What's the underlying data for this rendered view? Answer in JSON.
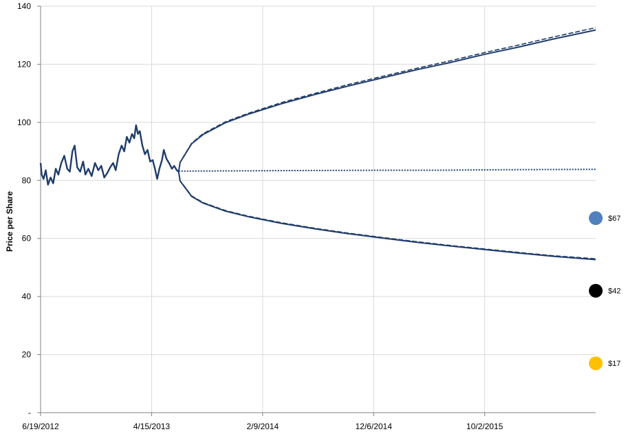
{
  "chart_data": {
    "type": "line",
    "title": "",
    "xlabel": "",
    "ylabel": "Price per Share",
    "ylim": [
      0,
      140
    ],
    "y_ticks": [
      0,
      20,
      40,
      60,
      80,
      100,
      120,
      140
    ],
    "y_tick_labels": [
      "-",
      "20",
      "40",
      "60",
      "80",
      "100",
      "120",
      "140"
    ],
    "x_ticks": [
      "2012-06-19",
      "2013-04-15",
      "2014-02-09",
      "2014-12-06",
      "2015-10-02"
    ],
    "x_tick_labels": [
      "6/19/2012",
      "4/15/2013",
      "2/9/2014",
      "12/6/2014",
      "10/2/2015"
    ],
    "xlim": [
      "2012-06-19",
      "2016-07-28"
    ],
    "grid": true,
    "series": [
      {
        "style": "solid",
        "color": "#1F3C6B",
        "points": [
          [
            "2012-06-19",
            86
          ],
          [
            "2012-06-22",
            82
          ],
          [
            "2012-06-27",
            80.5
          ],
          [
            "2012-07-03",
            83.5
          ],
          [
            "2012-07-09",
            78.5
          ],
          [
            "2012-07-16",
            81
          ],
          [
            "2012-07-23",
            79
          ],
          [
            "2012-07-30",
            84
          ],
          [
            "2012-08-06",
            82
          ],
          [
            "2012-08-14",
            86
          ],
          [
            "2012-08-22",
            88.5
          ],
          [
            "2012-08-30",
            84
          ],
          [
            "2012-09-06",
            83
          ],
          [
            "2012-09-13",
            90
          ],
          [
            "2012-09-19",
            92
          ],
          [
            "2012-09-26",
            84.5
          ],
          [
            "2012-10-04",
            83
          ],
          [
            "2012-10-12",
            86.5
          ],
          [
            "2012-10-18",
            82
          ],
          [
            "2012-10-26",
            84
          ],
          [
            "2012-11-04",
            81.5
          ],
          [
            "2012-11-13",
            86
          ],
          [
            "2012-11-22",
            83.5
          ],
          [
            "2012-11-30",
            85
          ],
          [
            "2012-12-08",
            81
          ],
          [
            "2012-12-16",
            82.5
          ],
          [
            "2012-12-24",
            84.5
          ],
          [
            "2013-01-01",
            86
          ],
          [
            "2013-01-08",
            83.5
          ],
          [
            "2013-01-16",
            89
          ],
          [
            "2013-01-24",
            92
          ],
          [
            "2013-01-31",
            90
          ],
          [
            "2013-02-07",
            95
          ],
          [
            "2013-02-14",
            93
          ],
          [
            "2013-02-21",
            96
          ],
          [
            "2013-02-27",
            94.5
          ],
          [
            "2013-03-04",
            99
          ],
          [
            "2013-03-09",
            96
          ],
          [
            "2013-03-14",
            97
          ],
          [
            "2013-03-21",
            92
          ],
          [
            "2013-03-28",
            89
          ],
          [
            "2013-04-04",
            90.5
          ],
          [
            "2013-04-11",
            86.5
          ],
          [
            "2013-04-18",
            87
          ],
          [
            "2013-04-24",
            84
          ],
          [
            "2013-04-30",
            80.5
          ],
          [
            "2013-05-06",
            84
          ],
          [
            "2013-05-13",
            87
          ],
          [
            "2013-05-18",
            90.5
          ],
          [
            "2013-05-25",
            87.5
          ],
          [
            "2013-06-01",
            86
          ],
          [
            "2013-06-09",
            84
          ],
          [
            "2013-06-15",
            85
          ],
          [
            "2013-06-22",
            83.5
          ],
          [
            "2013-06-27",
            83
          ]
        ]
      },
      {
        "style": "dotted",
        "color": "#1F3C6B",
        "points": [
          [
            "2013-06-27",
            83.2
          ],
          [
            "2014-01-01",
            83.3
          ],
          [
            "2014-06-01",
            83.4
          ],
          [
            "2015-01-01",
            83.5
          ],
          [
            "2015-06-01",
            83.5
          ],
          [
            "2015-09-01",
            83.6
          ],
          [
            "2016-01-01",
            83.7
          ],
          [
            "2016-07-28",
            83.8
          ]
        ]
      },
      {
        "style": "solid",
        "color": "#1F3C6B",
        "points": [
          [
            "2013-06-27",
            83
          ],
          [
            "2013-07-01",
            86.2
          ],
          [
            "2013-08-01",
            92.6
          ],
          [
            "2013-09-01",
            95.8
          ],
          [
            "2013-11-01",
            99.9
          ],
          [
            "2014-01-01",
            102.8
          ],
          [
            "2014-04-01",
            106.4
          ],
          [
            "2014-07-01",
            109.6
          ],
          [
            "2014-10-01",
            112.6
          ],
          [
            "2015-01-01",
            115.4
          ],
          [
            "2015-04-01",
            118.1
          ],
          [
            "2015-07-01",
            120.6
          ],
          [
            "2015-10-01",
            123.4
          ],
          [
            "2016-01-01",
            125.9
          ],
          [
            "2016-04-01",
            128.6
          ],
          [
            "2016-07-28",
            131.8
          ]
        ]
      },
      {
        "style": "dashed",
        "color": "#1F3C6B",
        "points": [
          [
            "2013-06-27",
            83
          ],
          [
            "2013-07-01",
            86.3
          ],
          [
            "2013-08-01",
            92.8
          ],
          [
            "2013-09-01",
            96.1
          ],
          [
            "2013-11-01",
            100.2
          ],
          [
            "2014-01-01",
            103.1
          ],
          [
            "2014-04-01",
            106.8
          ],
          [
            "2014-07-01",
            110
          ],
          [
            "2014-10-01",
            113.1
          ],
          [
            "2015-01-01",
            115.9
          ],
          [
            "2015-04-01",
            118.6
          ],
          [
            "2015-07-01",
            121.2
          ],
          [
            "2015-10-01",
            124
          ],
          [
            "2016-01-01",
            126.6
          ],
          [
            "2016-04-01",
            129.3
          ],
          [
            "2016-07-28",
            132.6
          ]
        ]
      },
      {
        "style": "solid",
        "color": "#1F3C6B",
        "points": [
          [
            "2013-06-27",
            83
          ],
          [
            "2013-07-01",
            79.8
          ],
          [
            "2013-08-01",
            74.5
          ],
          [
            "2013-09-01",
            72.2
          ],
          [
            "2013-11-01",
            69.4
          ],
          [
            "2014-01-01",
            67.5
          ],
          [
            "2014-04-01",
            65.2
          ],
          [
            "2014-07-01",
            63.3
          ],
          [
            "2014-10-01",
            61.6
          ],
          [
            "2015-01-01",
            60.1
          ],
          [
            "2015-04-01",
            58.7
          ],
          [
            "2015-07-01",
            57.4
          ],
          [
            "2015-10-01",
            56.2
          ],
          [
            "2016-01-01",
            55
          ],
          [
            "2016-04-01",
            53.9
          ],
          [
            "2016-07-28",
            52.7
          ]
        ]
      },
      {
        "style": "dashed",
        "color": "#1F3C6B",
        "points": [
          [
            "2013-06-27",
            83
          ],
          [
            "2013-07-01",
            79.9
          ],
          [
            "2013-08-01",
            74.7
          ],
          [
            "2013-09-01",
            72.4
          ],
          [
            "2013-11-01",
            69.6
          ],
          [
            "2014-01-01",
            67.7
          ],
          [
            "2014-04-01",
            65.4
          ],
          [
            "2014-07-01",
            63.5
          ],
          [
            "2014-10-01",
            61.8
          ],
          [
            "2015-01-01",
            60.3
          ],
          [
            "2015-04-01",
            58.9
          ],
          [
            "2015-07-01",
            57.6
          ],
          [
            "2015-10-01",
            56.4
          ],
          [
            "2016-01-01",
            55.2
          ],
          [
            "2016-04-01",
            54.1
          ],
          [
            "2016-07-28",
            53
          ]
        ]
      }
    ],
    "markers": [
      {
        "date": "2016-07-28",
        "value": 67,
        "label": "$67",
        "color": "#4F81BD"
      },
      {
        "date": "2016-07-28",
        "value": 42,
        "label": "$42",
        "color": "#000000"
      },
      {
        "date": "2016-07-28",
        "value": 17,
        "label": "$17",
        "color": "#FFC000"
      }
    ]
  }
}
